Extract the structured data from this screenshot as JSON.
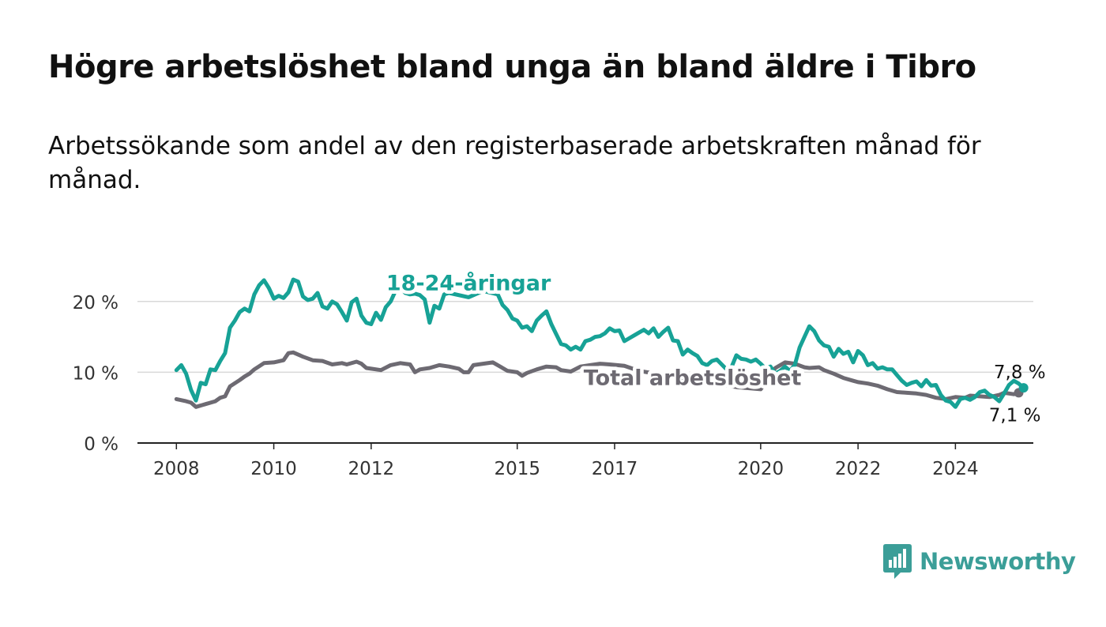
{
  "title": "Högre arbetslöshet bland unga än bland äldre i Tibro",
  "subtitle": "Arbetssökande som andel av den registerbaserade arbetskraften månad för månad.",
  "brand": {
    "name": "Newsworthy",
    "icon": "bar-chart-speech-bubble-icon",
    "color": "#3b9e98"
  },
  "chart_data": {
    "type": "line",
    "x_unit": "year",
    "xlim": [
      2007.2,
      2025.6
    ],
    "ylim": [
      0,
      25
    ],
    "yticks": [
      0,
      10,
      20
    ],
    "ytick_labels": [
      "0 %",
      "10 %",
      "20 %"
    ],
    "xticks": [
      2008,
      2010,
      2012,
      2015,
      2017,
      2020,
      2022,
      2024
    ],
    "xtick_labels": [
      "2008",
      "2010",
      "2012",
      "2015",
      "2017",
      "2020",
      "2022",
      "2024"
    ],
    "grid": true,
    "series": [
      {
        "name": "Total arbetslöshet",
        "color": "#6d6a72",
        "end_label": "7,1 %",
        "points": [
          [
            2008.0,
            6.2
          ],
          [
            2008.2,
            5.9
          ],
          [
            2008.3,
            5.7
          ],
          [
            2008.4,
            5.1
          ],
          [
            2008.6,
            5.5
          ],
          [
            2008.8,
            5.9
          ],
          [
            2008.9,
            6.4
          ],
          [
            2009.0,
            6.6
          ],
          [
            2009.1,
            8.0
          ],
          [
            2009.3,
            8.9
          ],
          [
            2009.4,
            9.4
          ],
          [
            2009.5,
            9.8
          ],
          [
            2009.6,
            10.4
          ],
          [
            2009.8,
            11.3
          ],
          [
            2010.0,
            11.4
          ],
          [
            2010.2,
            11.7
          ],
          [
            2010.3,
            12.7
          ],
          [
            2010.4,
            12.8
          ],
          [
            2010.6,
            12.2
          ],
          [
            2010.8,
            11.7
          ],
          [
            2011.0,
            11.6
          ],
          [
            2011.2,
            11.1
          ],
          [
            2011.4,
            11.3
          ],
          [
            2011.5,
            11.1
          ],
          [
            2011.7,
            11.5
          ],
          [
            2011.8,
            11.2
          ],
          [
            2011.9,
            10.6
          ],
          [
            2012.0,
            10.5
          ],
          [
            2012.2,
            10.3
          ],
          [
            2012.4,
            11.0
          ],
          [
            2012.6,
            11.3
          ],
          [
            2012.8,
            11.1
          ],
          [
            2012.9,
            10.0
          ],
          [
            2013.0,
            10.4
          ],
          [
            2013.2,
            10.6
          ],
          [
            2013.4,
            11.0
          ],
          [
            2013.6,
            10.8
          ],
          [
            2013.8,
            10.5
          ],
          [
            2013.9,
            10.0
          ],
          [
            2014.0,
            10.0
          ],
          [
            2014.1,
            11.0
          ],
          [
            2014.3,
            11.2
          ],
          [
            2014.5,
            11.4
          ],
          [
            2014.7,
            10.6
          ],
          [
            2014.8,
            10.2
          ],
          [
            2015.0,
            10.0
          ],
          [
            2015.1,
            9.5
          ],
          [
            2015.2,
            9.9
          ],
          [
            2015.4,
            10.4
          ],
          [
            2015.6,
            10.8
          ],
          [
            2015.8,
            10.7
          ],
          [
            2015.9,
            10.3
          ],
          [
            2016.1,
            10.1
          ],
          [
            2016.3,
            10.8
          ],
          [
            2016.5,
            11.0
          ],
          [
            2016.7,
            11.2
          ],
          [
            2016.9,
            11.1
          ],
          [
            2017.2,
            10.9
          ],
          [
            2017.5,
            10.2
          ],
          [
            2018.0,
            9.6
          ],
          [
            2018.5,
            9.0
          ],
          [
            2019.0,
            8.4
          ],
          [
            2019.5,
            7.9
          ],
          [
            2020.0,
            7.6
          ],
          [
            2020.3,
            10.6
          ],
          [
            2020.5,
            11.4
          ],
          [
            2020.7,
            11.2
          ],
          [
            2020.9,
            10.7
          ],
          [
            2021.0,
            10.6
          ],
          [
            2021.2,
            10.7
          ],
          [
            2021.3,
            10.3
          ],
          [
            2021.5,
            9.8
          ],
          [
            2021.7,
            9.2
          ],
          [
            2021.9,
            8.8
          ],
          [
            2022.0,
            8.6
          ],
          [
            2022.2,
            8.4
          ],
          [
            2022.4,
            8.1
          ],
          [
            2022.6,
            7.6
          ],
          [
            2022.8,
            7.2
          ],
          [
            2023.0,
            7.1
          ],
          [
            2023.2,
            7.0
          ],
          [
            2023.4,
            6.8
          ],
          [
            2023.6,
            6.4
          ],
          [
            2023.8,
            6.2
          ],
          [
            2024.0,
            6.5
          ],
          [
            2024.2,
            6.4
          ],
          [
            2024.3,
            6.7
          ],
          [
            2024.5,
            6.6
          ],
          [
            2024.7,
            6.5
          ],
          [
            2024.9,
            6.8
          ],
          [
            2025.0,
            7.1
          ],
          [
            2025.2,
            6.9
          ],
          [
            2025.3,
            7.1
          ]
        ]
      },
      {
        "name": "18-24-åringar",
        "color": "#17a296",
        "end_label": "7,8 %",
        "points": [
          [
            2008.0,
            10.3
          ],
          [
            2008.1,
            11.0
          ],
          [
            2008.2,
            9.8
          ],
          [
            2008.3,
            7.5
          ],
          [
            2008.4,
            6.0
          ],
          [
            2008.5,
            8.5
          ],
          [
            2008.6,
            8.3
          ],
          [
            2008.7,
            10.4
          ],
          [
            2008.8,
            10.3
          ],
          [
            2008.9,
            11.6
          ],
          [
            2009.0,
            12.7
          ],
          [
            2009.1,
            16.3
          ],
          [
            2009.2,
            17.3
          ],
          [
            2009.3,
            18.5
          ],
          [
            2009.4,
            19.0
          ],
          [
            2009.5,
            18.6
          ],
          [
            2009.6,
            21.0
          ],
          [
            2009.7,
            22.3
          ],
          [
            2009.8,
            23.0
          ],
          [
            2009.9,
            21.9
          ],
          [
            2010.0,
            20.4
          ],
          [
            2010.1,
            20.8
          ],
          [
            2010.2,
            20.5
          ],
          [
            2010.3,
            21.3
          ],
          [
            2010.4,
            23.1
          ],
          [
            2010.5,
            22.8
          ],
          [
            2010.6,
            20.7
          ],
          [
            2010.7,
            20.2
          ],
          [
            2010.8,
            20.4
          ],
          [
            2010.9,
            21.2
          ],
          [
            2011.0,
            19.3
          ],
          [
            2011.1,
            19.0
          ],
          [
            2011.2,
            20.0
          ],
          [
            2011.3,
            19.6
          ],
          [
            2011.4,
            18.5
          ],
          [
            2011.5,
            17.3
          ],
          [
            2011.6,
            19.9
          ],
          [
            2011.7,
            20.4
          ],
          [
            2011.8,
            18.0
          ],
          [
            2011.9,
            17.0
          ],
          [
            2012.0,
            16.8
          ],
          [
            2012.1,
            18.4
          ],
          [
            2012.2,
            17.4
          ],
          [
            2012.3,
            19.2
          ],
          [
            2012.4,
            20.0
          ],
          [
            2012.5,
            21.5
          ],
          [
            2012.6,
            22.0
          ],
          [
            2012.7,
            21.2
          ],
          [
            2012.8,
            21.0
          ],
          [
            2012.9,
            21.1
          ],
          [
            2013.0,
            20.9
          ],
          [
            2013.1,
            20.3
          ],
          [
            2013.2,
            17.0
          ],
          [
            2013.3,
            19.4
          ],
          [
            2013.4,
            19.0
          ],
          [
            2013.5,
            21.0
          ],
          [
            2013.6,
            21.2
          ],
          [
            2014.0,
            20.6
          ],
          [
            2014.3,
            21.5
          ],
          [
            2014.6,
            21.0
          ],
          [
            2014.7,
            19.5
          ],
          [
            2014.8,
            18.8
          ],
          [
            2014.9,
            17.6
          ],
          [
            2015.0,
            17.3
          ],
          [
            2015.1,
            16.3
          ],
          [
            2015.2,
            16.5
          ],
          [
            2015.3,
            15.8
          ],
          [
            2015.4,
            17.3
          ],
          [
            2015.5,
            18.0
          ],
          [
            2015.6,
            18.6
          ],
          [
            2015.7,
            16.8
          ],
          [
            2015.8,
            15.4
          ],
          [
            2015.9,
            14.0
          ],
          [
            2016.0,
            13.8
          ],
          [
            2016.1,
            13.2
          ],
          [
            2016.2,
            13.6
          ],
          [
            2016.3,
            13.2
          ],
          [
            2016.4,
            14.4
          ],
          [
            2016.5,
            14.6
          ],
          [
            2016.6,
            15.0
          ],
          [
            2016.7,
            15.1
          ],
          [
            2016.8,
            15.5
          ],
          [
            2016.9,
            16.2
          ],
          [
            2017.0,
            15.8
          ],
          [
            2017.1,
            15.9
          ],
          [
            2017.2,
            14.4
          ],
          [
            2017.3,
            14.8
          ],
          [
            2017.4,
            15.2
          ],
          [
            2017.5,
            15.6
          ],
          [
            2017.6,
            16.0
          ],
          [
            2017.7,
            15.5
          ],
          [
            2017.8,
            16.2
          ],
          [
            2017.9,
            15.0
          ],
          [
            2018.0,
            15.7
          ],
          [
            2018.1,
            16.3
          ],
          [
            2018.2,
            14.5
          ],
          [
            2018.3,
            14.4
          ],
          [
            2018.4,
            12.5
          ],
          [
            2018.5,
            13.2
          ],
          [
            2018.6,
            12.7
          ],
          [
            2018.7,
            12.3
          ],
          [
            2018.8,
            11.3
          ],
          [
            2018.9,
            11.0
          ],
          [
            2019.0,
            11.6
          ],
          [
            2019.1,
            11.8
          ],
          [
            2019.3,
            10.4
          ],
          [
            2019.4,
            10.7
          ],
          [
            2019.5,
            12.4
          ],
          [
            2019.6,
            11.9
          ],
          [
            2019.7,
            11.8
          ],
          [
            2019.8,
            11.5
          ],
          [
            2019.9,
            11.8
          ],
          [
            2020.0,
            11.2
          ],
          [
            2020.1,
            10.5
          ],
          [
            2020.2,
            10.8
          ],
          [
            2020.3,
            9.8
          ],
          [
            2020.4,
            10.2
          ],
          [
            2020.5,
            10.8
          ],
          [
            2020.6,
            10.2
          ],
          [
            2020.7,
            11.0
          ],
          [
            2020.8,
            13.5
          ],
          [
            2020.9,
            15.0
          ],
          [
            2021.0,
            16.5
          ],
          [
            2021.1,
            15.8
          ],
          [
            2021.2,
            14.5
          ],
          [
            2021.3,
            13.8
          ],
          [
            2021.4,
            13.6
          ],
          [
            2021.5,
            12.2
          ],
          [
            2021.6,
            13.3
          ],
          [
            2021.7,
            12.6
          ],
          [
            2021.8,
            12.9
          ],
          [
            2021.9,
            11.4
          ],
          [
            2022.0,
            13.0
          ],
          [
            2022.1,
            12.4
          ],
          [
            2022.2,
            11.0
          ],
          [
            2022.3,
            11.3
          ],
          [
            2022.4,
            10.5
          ],
          [
            2022.5,
            10.7
          ],
          [
            2022.6,
            10.4
          ],
          [
            2022.7,
            10.4
          ],
          [
            2022.8,
            9.6
          ],
          [
            2022.9,
            8.8
          ],
          [
            2023.0,
            8.2
          ],
          [
            2023.1,
            8.5
          ],
          [
            2023.2,
            8.7
          ],
          [
            2023.3,
            8.0
          ],
          [
            2023.4,
            8.9
          ],
          [
            2023.5,
            8.1
          ],
          [
            2023.6,
            8.2
          ],
          [
            2023.7,
            6.8
          ],
          [
            2023.8,
            6.0
          ],
          [
            2023.9,
            5.8
          ],
          [
            2024.0,
            5.1
          ],
          [
            2024.1,
            6.2
          ],
          [
            2024.2,
            6.4
          ],
          [
            2024.3,
            6.1
          ],
          [
            2024.4,
            6.5
          ],
          [
            2024.5,
            7.2
          ],
          [
            2024.6,
            7.4
          ],
          [
            2024.7,
            6.8
          ],
          [
            2024.8,
            6.5
          ],
          [
            2024.9,
            5.9
          ],
          [
            2025.0,
            7.0
          ],
          [
            2025.1,
            8.2
          ],
          [
            2025.2,
            8.8
          ],
          [
            2025.3,
            8.4
          ],
          [
            2025.4,
            7.8
          ]
        ]
      }
    ],
    "annotations": [
      {
        "series": "18-24-åringar",
        "text": "18-24-åringar"
      },
      {
        "series": "Total arbetslöshet",
        "text": "Total arbetslöshet"
      }
    ]
  }
}
